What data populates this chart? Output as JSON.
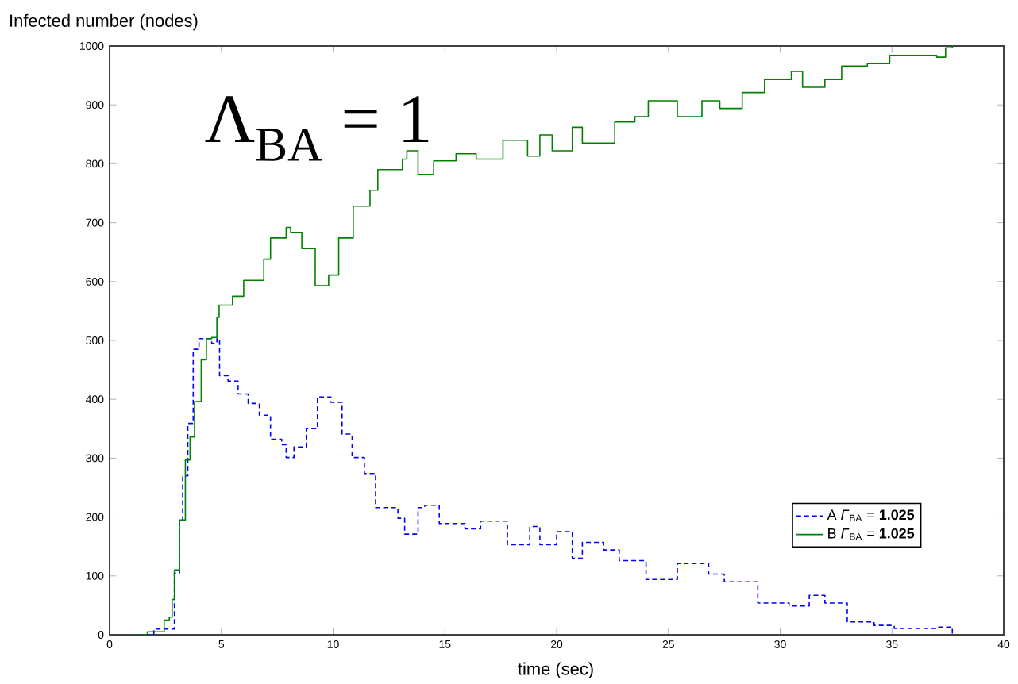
{
  "chart_data": {
    "type": "step",
    "xlabel": "time (sec)",
    "ylabel": "Infected number (nodes)",
    "annotations": [
      "Λ$_{BA}$ = 1"
    ],
    "xlim": [
      0,
      40
    ],
    "xticks": [
      0,
      5,
      10,
      15,
      20,
      25,
      30,
      35,
      40
    ],
    "ylim": [
      0,
      1000
    ],
    "yticks": [
      0,
      100,
      200,
      300,
      400,
      500,
      600,
      700,
      800,
      900,
      1000
    ],
    "grid": false,
    "legend": "bottom right",
    "marker": "none",
    "series": [
      {
        "name": "A *Γ*$_{BA}$ = **1.025**",
        "color": "#0000ff",
        "line_style": "dashed",
        "x": [
          1.26,
          1.98,
          2.9,
          3.13,
          3.27,
          3.5,
          3.74,
          4.0,
          4.57,
          4.8,
          4.92,
          5.3,
          5.75,
          6.2,
          6.7,
          7.2,
          7.7,
          7.9,
          8.25,
          8.8,
          9.3,
          9.9,
          10.4,
          10.85,
          11.4,
          11.9,
          12.9,
          13.2,
          13.8,
          14.1,
          14.75,
          15.9,
          16.6,
          17.8,
          18.8,
          19.25,
          20.0,
          20.7,
          21.15,
          22.1,
          22.8,
          24.0,
          25.4,
          26.8,
          27.5,
          29.0,
          30.4,
          31.3,
          32.0,
          33.0,
          34.2,
          35.1,
          37.0,
          37.7
        ],
        "values": [
          0,
          10,
          105,
          195,
          270,
          359,
          485,
          503,
          495,
          503,
          440,
          431,
          409,
          393,
          373,
          332,
          323,
          301,
          319,
          350,
          404,
          395,
          341,
          301,
          274,
          216,
          198,
          171,
          216,
          220,
          189,
          180,
          193,
          153,
          184,
          153,
          175,
          130,
          157,
          144,
          126,
          94,
          121,
          103,
          90,
          54,
          49,
          67,
          54,
          22,
          16,
          11,
          13,
          0
        ]
      },
      {
        "name": "B *Γ*$_{BA}$ = **1.025**",
        "color": "#008000",
        "line_style": "solid",
        "x": [
          1.26,
          1.69,
          2.44,
          2.67,
          2.8,
          2.9,
          3.13,
          3.39,
          3.6,
          3.8,
          4.1,
          4.33,
          4.57,
          4.8,
          4.9,
          5.5,
          6.0,
          6.9,
          7.2,
          7.9,
          8.1,
          8.6,
          9.2,
          9.8,
          10.25,
          10.9,
          11.65,
          12.0,
          13.1,
          13.3,
          13.8,
          14.5,
          15.5,
          16.4,
          17.6,
          18.7,
          19.25,
          19.8,
          20.7,
          21.15,
          22.6,
          23.5,
          24.1,
          25.4,
          26.5,
          27.3,
          28.3,
          29.3,
          30.5,
          31.0,
          32.0,
          32.75,
          33.9,
          34.9,
          37.0,
          37.4,
          37.7
        ],
        "values": [
          0,
          5,
          25,
          30,
          60,
          110,
          195,
          297,
          336,
          396,
          467,
          503,
          505,
          539,
          560,
          575,
          602,
          638,
          674,
          692,
          683,
          656,
          593,
          611,
          674,
          728,
          755,
          790,
          808,
          822,
          782,
          805,
          817,
          808,
          840,
          813,
          849,
          822,
          862,
          835,
          871,
          880,
          907,
          880,
          907,
          894,
          921,
          943,
          957,
          930,
          943,
          966,
          970,
          984,
          981,
          997,
          1000
        ]
      }
    ]
  }
}
